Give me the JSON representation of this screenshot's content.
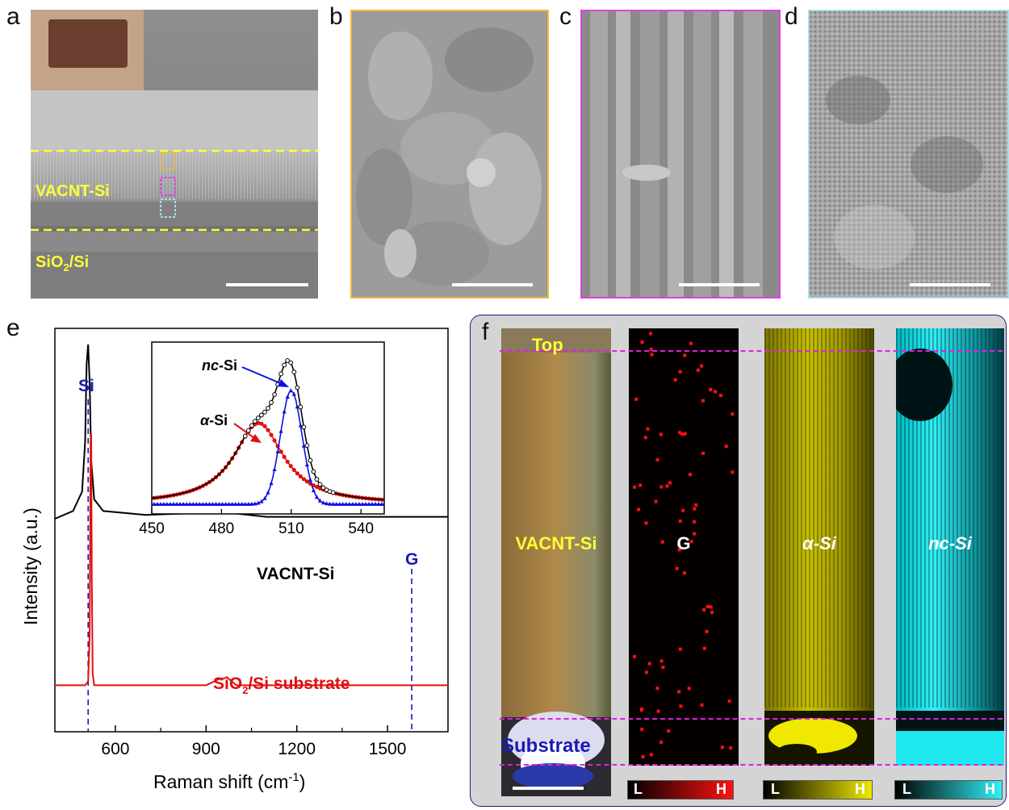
{
  "panels": {
    "a": {
      "letter": "a",
      "label_vacnt": "VACNT-Si",
      "label_substrate_main": "SiO",
      "label_substrate_sub": "2",
      "label_substrate_tail": "/Si"
    },
    "b": {
      "letter": "b"
    },
    "c": {
      "letter": "c"
    },
    "d": {
      "letter": "d"
    },
    "e": {
      "letter": "e",
      "si_label": "Si",
      "g_label": "G",
      "vacnt_label": "VACNT-Si",
      "substrate_label_main": "SiO",
      "substrate_label_sub": "2",
      "substrate_label_tail": "/Si substrate",
      "ylabel": "Intensity (a.u.)",
      "xlabel_main": "Raman shift (cm",
      "xlabel_sup": "-1",
      "xlabel_tail": ")",
      "inset_nc_italic": "nc",
      "inset_nc_tail": "-Si",
      "inset_a_italic": "α",
      "inset_a_tail": "-Si"
    },
    "f": {
      "letter": "f",
      "top_label": "Top",
      "substrate_label": "Substrate",
      "map_titles": [
        "VACNT-Si",
        "G",
        "α-Si",
        "nc-Si"
      ],
      "colorbar_low": "L",
      "colorbar_high": "H"
    }
  },
  "colors": {
    "yellow_label": "#ffff33",
    "panel_b_border": "#f0b93a",
    "panel_c_border": "#e040e0",
    "panel_d_border": "#a8dde8",
    "trace_vacnt": "#000000",
    "trace_substrate": "#e01010",
    "si_marker": "#1a1ab4",
    "g_marker": "#1a1ab4",
    "inset_asi": "#e01010",
    "inset_ncsi": "#1010e0",
    "map_g": "#ff1010",
    "map_asi": "#e8e000",
    "map_ncsi": "#00e0e8",
    "panel_f_border": "#1a1a80",
    "panel_f_bg": "#d4d4d4",
    "guide_magenta": "#e020e0"
  },
  "chart_data": [
    {
      "type": "line",
      "panel": "e",
      "xlabel": "Raman shift (cm-1)",
      "ylabel": "Intensity (a.u.)",
      "xlim": [
        400,
        1700
      ],
      "xticks": [
        600,
        900,
        1200,
        1500
      ],
      "markers": [
        {
          "label": "Si",
          "x": 510
        },
        {
          "label": "G",
          "x": 1580
        }
      ],
      "series": [
        {
          "name": "VACNT-Si",
          "x": [
            400,
            460,
            490,
            500,
            505,
            510,
            515,
            520,
            530,
            560,
            700,
            880,
            930,
            980,
            1100,
            1300,
            1500,
            1700
          ],
          "y": [
            0.55,
            0.57,
            0.62,
            0.75,
            0.95,
            1.0,
            0.9,
            0.7,
            0.6,
            0.57,
            0.56,
            0.565,
            0.6,
            0.565,
            0.555,
            0.555,
            0.555,
            0.555
          ]
        },
        {
          "name": "SiO2/Si substrate",
          "x": [
            400,
            500,
            510,
            515,
            518,
            520,
            522,
            525,
            530,
            600,
            900,
            940,
            970,
            1000,
            1200,
            1500,
            1700
          ],
          "y": [
            0.12,
            0.12,
            0.13,
            0.25,
            0.75,
            0.77,
            0.4,
            0.15,
            0.12,
            0.12,
            0.12,
            0.135,
            0.14,
            0.12,
            0.12,
            0.12,
            0.12
          ]
        }
      ]
    },
    {
      "type": "line",
      "panel": "e-inset",
      "xlim": [
        450,
        550
      ],
      "xticks": [
        450,
        480,
        510,
        540
      ],
      "series": [
        {
          "name": "α-Si",
          "peak": 496,
          "width": 26,
          "height": 0.55
        },
        {
          "name": "nc-Si",
          "peak": 510,
          "width": 11,
          "height": 0.77
        },
        {
          "name": "sum",
          "peak": 507,
          "height": 0.93
        }
      ]
    }
  ]
}
